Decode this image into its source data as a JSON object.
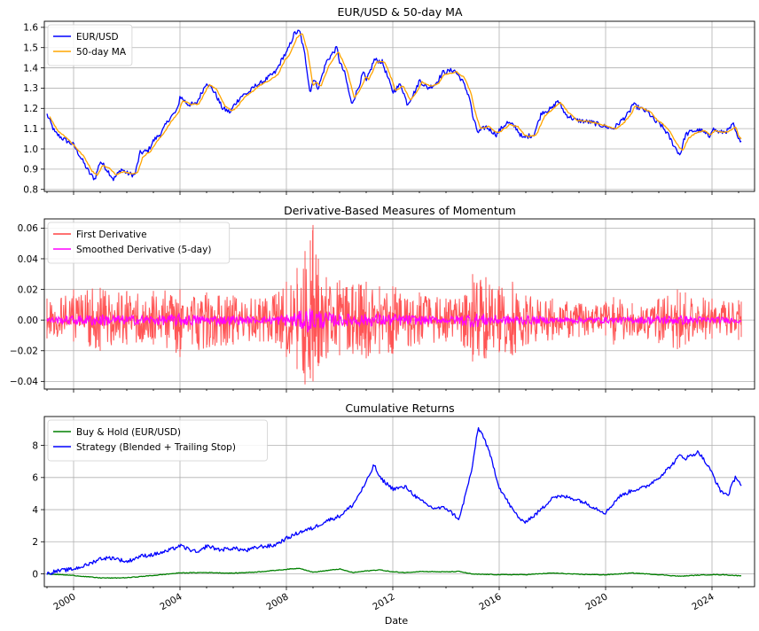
{
  "chart_data": [
    {
      "type": "line",
      "title": "EUR/USD & 50-day MA",
      "xlabel": "",
      "ylabel": "",
      "xlim": [
        1998.9,
        2025.6
      ],
      "ylim": [
        0.79,
        1.63
      ],
      "yticks": [
        0.8,
        0.9,
        1.0,
        1.1,
        1.2,
        1.3,
        1.4,
        1.5,
        1.6
      ],
      "ytick_labels": [
        "0.8",
        "0.9",
        "1.0",
        "1.1",
        "1.2",
        "1.3",
        "1.4",
        "1.5",
        "1.6"
      ],
      "grid": true,
      "legend_position": "top-left",
      "series": [
        {
          "name": "EUR/USD",
          "color": "#0000ff",
          "x": [
            1999.0,
            1999.3,
            1999.6,
            2000.0,
            2000.3,
            2000.6,
            2000.8,
            2001.0,
            2001.3,
            2001.5,
            2001.8,
            2002.0,
            2002.3,
            2002.5,
            2002.8,
            2003.0,
            2003.3,
            2003.6,
            2003.9,
            2004.0,
            2004.3,
            2004.6,
            2004.9,
            2005.0,
            2005.3,
            2005.6,
            2005.9,
            2006.0,
            2006.3,
            2006.6,
            2006.9,
            2007.0,
            2007.3,
            2007.6,
            2007.9,
            2008.0,
            2008.3,
            2008.5,
            2008.7,
            2008.9,
            2009.0,
            2009.2,
            2009.5,
            2009.9,
            2010.0,
            2010.2,
            2010.45,
            2010.7,
            2010.9,
            2011.0,
            2011.3,
            2011.6,
            2011.9,
            2012.0,
            2012.3,
            2012.55,
            2012.9,
            2013.0,
            2013.3,
            2013.6,
            2013.9,
            2014.0,
            2014.3,
            2014.6,
            2014.9,
            2015.0,
            2015.2,
            2015.5,
            2015.9,
            2016.0,
            2016.3,
            2016.6,
            2016.9,
            2017.0,
            2017.3,
            2017.6,
            2018.0,
            2018.2,
            2018.5,
            2018.9,
            2019.0,
            2019.5,
            2020.0,
            2020.3,
            2020.6,
            2020.9,
            2021.0,
            2021.3,
            2021.6,
            2021.9,
            2022.0,
            2022.3,
            2022.6,
            2022.8,
            2023.0,
            2023.3,
            2023.6,
            2023.9,
            2024.0,
            2024.3,
            2024.6,
            2024.8,
            2025.0,
            2025.1
          ],
          "y": [
            1.17,
            1.08,
            1.05,
            1.02,
            0.95,
            0.88,
            0.85,
            0.94,
            0.89,
            0.85,
            0.9,
            0.88,
            0.87,
            0.98,
            0.99,
            1.04,
            1.08,
            1.15,
            1.19,
            1.26,
            1.22,
            1.22,
            1.3,
            1.33,
            1.28,
            1.2,
            1.18,
            1.21,
            1.26,
            1.28,
            1.32,
            1.32,
            1.35,
            1.38,
            1.46,
            1.47,
            1.57,
            1.58,
            1.46,
            1.27,
            1.35,
            1.3,
            1.43,
            1.5,
            1.43,
            1.37,
            1.22,
            1.3,
            1.38,
            1.33,
            1.44,
            1.43,
            1.32,
            1.28,
            1.32,
            1.22,
            1.3,
            1.34,
            1.3,
            1.32,
            1.38,
            1.38,
            1.39,
            1.34,
            1.25,
            1.16,
            1.08,
            1.11,
            1.07,
            1.09,
            1.13,
            1.11,
            1.05,
            1.06,
            1.07,
            1.18,
            1.2,
            1.24,
            1.17,
            1.14,
            1.14,
            1.13,
            1.11,
            1.1,
            1.14,
            1.18,
            1.22,
            1.2,
            1.18,
            1.13,
            1.13,
            1.08,
            1.01,
            0.97,
            1.07,
            1.09,
            1.09,
            1.06,
            1.1,
            1.08,
            1.09,
            1.12,
            1.04,
            1.05
          ]
        },
        {
          "name": "50-day MA",
          "color": "#ffa500",
          "x": [
            1999.1,
            1999.4,
            1999.7,
            2000.0,
            2000.4,
            2000.7,
            2000.9,
            2001.1,
            2001.4,
            2001.6,
            2001.9,
            2002.1,
            2002.4,
            2002.6,
            2002.9,
            2003.1,
            2003.4,
            2003.7,
            2003.95,
            2004.1,
            2004.4,
            2004.7,
            2004.95,
            2005.1,
            2005.4,
            2005.7,
            2005.95,
            2006.1,
            2006.4,
            2006.7,
            2006.95,
            2007.1,
            2007.4,
            2007.7,
            2007.95,
            2008.1,
            2008.4,
            2008.6,
            2008.8,
            2009.0,
            2009.1,
            2009.3,
            2009.6,
            2009.95,
            2010.1,
            2010.3,
            2010.55,
            2010.8,
            2011.0,
            2011.1,
            2011.4,
            2011.7,
            2012.0,
            2012.1,
            2012.4,
            2012.65,
            2012.95,
            2013.1,
            2013.4,
            2013.7,
            2013.95,
            2014.1,
            2014.4,
            2014.7,
            2014.95,
            2015.1,
            2015.3,
            2015.6,
            2015.95,
            2016.1,
            2016.4,
            2016.7,
            2016.95,
            2017.1,
            2017.4,
            2017.7,
            2018.05,
            2018.3,
            2018.6,
            2018.95,
            2019.1,
            2019.6,
            2020.1,
            2020.4,
            2020.7,
            2020.95,
            2021.1,
            2021.4,
            2021.7,
            2021.95,
            2022.1,
            2022.4,
            2022.7,
            2022.9,
            2023.1,
            2023.4,
            2023.7,
            2023.95,
            2024.1,
            2024.4,
            2024.7,
            2024.9,
            2025.0,
            2025.1
          ],
          "y": [
            1.16,
            1.09,
            1.06,
            1.02,
            0.96,
            0.89,
            0.87,
            0.92,
            0.9,
            0.87,
            0.89,
            0.88,
            0.88,
            0.96,
            0.99,
            1.03,
            1.08,
            1.14,
            1.18,
            1.24,
            1.22,
            1.22,
            1.28,
            1.32,
            1.29,
            1.21,
            1.19,
            1.2,
            1.25,
            1.28,
            1.31,
            1.32,
            1.34,
            1.37,
            1.44,
            1.46,
            1.55,
            1.57,
            1.48,
            1.31,
            1.33,
            1.31,
            1.41,
            1.48,
            1.44,
            1.38,
            1.25,
            1.3,
            1.36,
            1.34,
            1.43,
            1.43,
            1.33,
            1.29,
            1.31,
            1.24,
            1.29,
            1.33,
            1.31,
            1.32,
            1.37,
            1.37,
            1.38,
            1.35,
            1.27,
            1.18,
            1.1,
            1.11,
            1.08,
            1.09,
            1.12,
            1.11,
            1.07,
            1.06,
            1.07,
            1.16,
            1.2,
            1.23,
            1.18,
            1.14,
            1.14,
            1.13,
            1.11,
            1.1,
            1.13,
            1.17,
            1.21,
            1.2,
            1.18,
            1.14,
            1.13,
            1.09,
            1.02,
            0.99,
            1.05,
            1.08,
            1.09,
            1.07,
            1.09,
            1.08,
            1.09,
            1.11,
            1.06,
            1.05
          ]
        }
      ]
    },
    {
      "type": "line",
      "title": "Derivative-Based Measures of Momentum",
      "xlabel": "",
      "ylabel": "",
      "xlim": [
        1998.9,
        2025.6
      ],
      "ylim": [
        -0.045,
        0.066
      ],
      "yticks": [
        -0.04,
        -0.02,
        0.0,
        0.02,
        0.04,
        0.06
      ],
      "ytick_labels": [
        "−0.04",
        "−0.02",
        "0.00",
        "0.02",
        "0.04",
        "0.06"
      ],
      "grid": true,
      "legend_position": "top-left",
      "envelope": {
        "x": [
          1999.0,
          2000.0,
          2001.0,
          2002.0,
          2003.0,
          2004.0,
          2005.0,
          2006.0,
          2007.0,
          2007.6,
          2008.0,
          2008.4,
          2008.7,
          2008.9,
          2009.0,
          2009.2,
          2009.5,
          2010.0,
          2010.5,
          2011.0,
          2011.5,
          2012.0,
          2013.0,
          2014.0,
          2014.7,
          2015.0,
          2015.5,
          2016.0,
          2016.5,
          2017.0,
          2018.0,
          2019.0,
          2020.0,
          2020.3,
          2021.0,
          2022.0,
          2022.7,
          2023.0,
          2024.0,
          2025.0,
          2025.1
        ],
        "upper": [
          0.014,
          0.02,
          0.021,
          0.019,
          0.019,
          0.02,
          0.018,
          0.016,
          0.014,
          0.017,
          0.025,
          0.034,
          0.045,
          0.052,
          0.062,
          0.04,
          0.028,
          0.026,
          0.023,
          0.025,
          0.022,
          0.022,
          0.018,
          0.014,
          0.016,
          0.03,
          0.028,
          0.022,
          0.025,
          0.016,
          0.014,
          0.011,
          0.012,
          0.015,
          0.011,
          0.014,
          0.02,
          0.018,
          0.014,
          0.013,
          0.012
        ],
        "lower": [
          -0.012,
          -0.014,
          -0.02,
          -0.016,
          -0.016,
          -0.024,
          -0.018,
          -0.016,
          -0.014,
          -0.015,
          -0.024,
          -0.032,
          -0.042,
          -0.038,
          -0.04,
          -0.03,
          -0.025,
          -0.023,
          -0.022,
          -0.025,
          -0.022,
          -0.022,
          -0.016,
          -0.014,
          -0.018,
          -0.027,
          -0.025,
          -0.021,
          -0.023,
          -0.016,
          -0.013,
          -0.011,
          -0.01,
          -0.016,
          -0.01,
          -0.015,
          -0.019,
          -0.016,
          -0.012,
          -0.013,
          -0.011
        ]
      },
      "series": [
        {
          "name": "First Derivative",
          "color": "#ff4444"
        },
        {
          "name": "Smoothed Derivative (5-day)",
          "color": "#ff00ff",
          "x": [
            1999.0,
            2000.0,
            2001.0,
            2002.0,
            2003.0,
            2004.0,
            2005.0,
            2006.0,
            2007.0,
            2008.0,
            2008.5,
            2008.8,
            2009.0,
            2009.5,
            2010.0,
            2011.0,
            2012.0,
            2013.0,
            2014.0,
            2015.0,
            2015.5,
            2016.0,
            2017.0,
            2018.0,
            2019.0,
            2020.0,
            2021.0,
            2022.0,
            2023.0,
            2024.0,
            2025.0,
            2025.1
          ],
          "upper": [
            0.002,
            0.003,
            0.004,
            0.003,
            0.003,
            0.004,
            0.003,
            0.003,
            0.002,
            0.004,
            0.006,
            0.008,
            0.009,
            0.005,
            0.004,
            0.004,
            0.004,
            0.003,
            0.002,
            0.005,
            0.004,
            0.003,
            0.003,
            0.002,
            0.002,
            0.002,
            0.002,
            0.003,
            0.003,
            0.002,
            0.002,
            0.002
          ],
          "lower": [
            -0.002,
            -0.003,
            -0.004,
            -0.003,
            -0.003,
            -0.004,
            -0.003,
            -0.003,
            -0.002,
            -0.004,
            -0.006,
            -0.008,
            -0.008,
            -0.005,
            -0.004,
            -0.004,
            -0.004,
            -0.003,
            -0.002,
            -0.005,
            -0.004,
            -0.003,
            -0.003,
            -0.002,
            -0.002,
            -0.002,
            -0.002,
            -0.003,
            -0.003,
            -0.002,
            -0.002,
            -0.002
          ]
        }
      ]
    },
    {
      "type": "line",
      "title": "Cumulative Returns",
      "xlabel": "Date",
      "ylabel": "",
      "xlim": [
        1998.9,
        2025.6
      ],
      "ylim": [
        -0.8,
        9.8
      ],
      "yticks": [
        0,
        2,
        4,
        6,
        8
      ],
      "ytick_labels": [
        "0",
        "2",
        "4",
        "6",
        "8"
      ],
      "xticks": [
        2000,
        2004,
        2008,
        2012,
        2016,
        2020,
        2024
      ],
      "xtick_labels": [
        "2000",
        "2004",
        "2008",
        "2012",
        "2016",
        "2020",
        "2024"
      ],
      "grid": true,
      "legend_position": "top-left",
      "series": [
        {
          "name": "Buy & Hold (EUR/USD)",
          "color": "#008000",
          "x": [
            1999.0,
            1999.5,
            2000.0,
            2000.5,
            2001.0,
            2001.5,
            2002.0,
            2002.5,
            2003.0,
            2003.5,
            2004.0,
            2005.0,
            2006.0,
            2007.0,
            2008.0,
            2008.5,
            2009.0,
            2009.5,
            2010.0,
            2010.5,
            2011.0,
            2011.5,
            2012.0,
            2012.5,
            2013.0,
            2014.0,
            2014.5,
            2015.0,
            2016.0,
            2017.0,
            2018.0,
            2019.0,
            2020.0,
            2021.0,
            2022.0,
            2022.8,
            2023.5,
            2024.0,
            2024.5,
            2025.0,
            2025.1
          ],
          "y": [
            0.0,
            -0.05,
            -0.1,
            -0.18,
            -0.25,
            -0.26,
            -0.24,
            -0.17,
            -0.1,
            -0.02,
            0.06,
            0.08,
            0.04,
            0.13,
            0.28,
            0.35,
            0.1,
            0.2,
            0.3,
            0.08,
            0.18,
            0.25,
            0.12,
            0.08,
            0.15,
            0.12,
            0.15,
            -0.02,
            -0.05,
            -0.05,
            0.05,
            -0.03,
            -0.06,
            0.05,
            -0.05,
            -0.15,
            -0.08,
            -0.05,
            -0.06,
            -0.12,
            -0.1
          ]
        },
        {
          "name": "Strategy (Blended + Trailing Stop)",
          "color": "#0000ff",
          "x": [
            1999.0,
            1999.3,
            1999.6,
            2000.0,
            2000.5,
            2001.0,
            2001.5,
            2002.0,
            2002.5,
            2003.0,
            2003.5,
            2004.0,
            2004.3,
            2004.7,
            2005.0,
            2005.5,
            2006.0,
            2006.5,
            2007.0,
            2007.5,
            2008.0,
            2008.5,
            2009.0,
            2009.5,
            2010.0,
            2010.5,
            2011.0,
            2011.3,
            2011.5,
            2012.0,
            2012.5,
            2013.0,
            2013.5,
            2014.0,
            2014.5,
            2015.0,
            2015.2,
            2015.4,
            2015.7,
            2016.0,
            2016.5,
            2016.9,
            2017.3,
            2017.7,
            2018.0,
            2018.5,
            2019.0,
            2019.5,
            2020.0,
            2020.5,
            2021.0,
            2021.5,
            2022.0,
            2022.5,
            2022.8,
            2023.0,
            2023.5,
            2024.0,
            2024.3,
            2024.6,
            2024.9,
            2025.1
          ],
          "y": [
            0.0,
            0.15,
            0.22,
            0.3,
            0.55,
            0.95,
            1.0,
            0.75,
            1.1,
            1.2,
            1.4,
            1.75,
            1.55,
            1.3,
            1.75,
            1.5,
            1.6,
            1.45,
            1.7,
            1.75,
            2.2,
            2.6,
            2.85,
            3.3,
            3.6,
            4.3,
            5.7,
            6.8,
            6.0,
            5.3,
            5.4,
            4.6,
            4.1,
            4.1,
            3.4,
            6.7,
            9.1,
            8.6,
            7.2,
            5.4,
            4.0,
            3.2,
            3.6,
            4.2,
            4.8,
            4.8,
            4.6,
            4.2,
            3.8,
            4.8,
            5.2,
            5.4,
            6.0,
            6.8,
            7.4,
            7.2,
            7.6,
            6.3,
            5.2,
            4.9,
            6.1,
            5.5
          ]
        }
      ]
    }
  ]
}
